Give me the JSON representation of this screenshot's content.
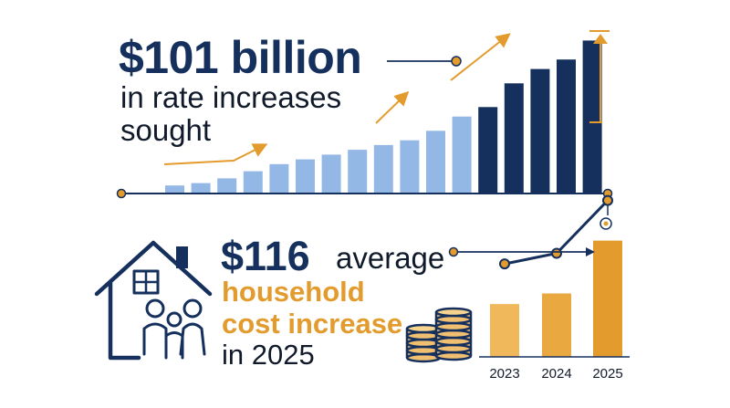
{
  "top": {
    "headline": "$101 billion",
    "sub_line1": "in rate increases",
    "sub_line2": "sought"
  },
  "bottom": {
    "headline_amount": "$116",
    "headline_word": "average",
    "line1": "household",
    "line2": "cost increase",
    "line3": "in 2025"
  },
  "icons": [
    "house-family-icon",
    "coin-stack-icon",
    "trend-arrow-icon",
    "up-arrow-icon"
  ],
  "colors": {
    "navy": "#16305e",
    "light_blue": "#94b8e6",
    "orange": "#e29b2c",
    "text": "#111a2b"
  },
  "chart_data": [
    {
      "type": "bar",
      "values": [
        1.5,
        2,
        3,
        4.5,
        6,
        7,
        8,
        9,
        10,
        11,
        13,
        16,
        18,
        23,
        26,
        28,
        32
      ],
      "highlighted_from_index": 12,
      "ylim": [
        0,
        34
      ],
      "title": "",
      "xlabel": "",
      "ylabel": ""
    },
    {
      "type": "bar",
      "categories": [
        "2023",
        "2024",
        "2025"
      ],
      "values": [
        2.5,
        3.0,
        5.5
      ],
      "ylim": [
        0,
        6
      ],
      "title": "",
      "xlabel": "",
      "ylabel": ""
    }
  ]
}
